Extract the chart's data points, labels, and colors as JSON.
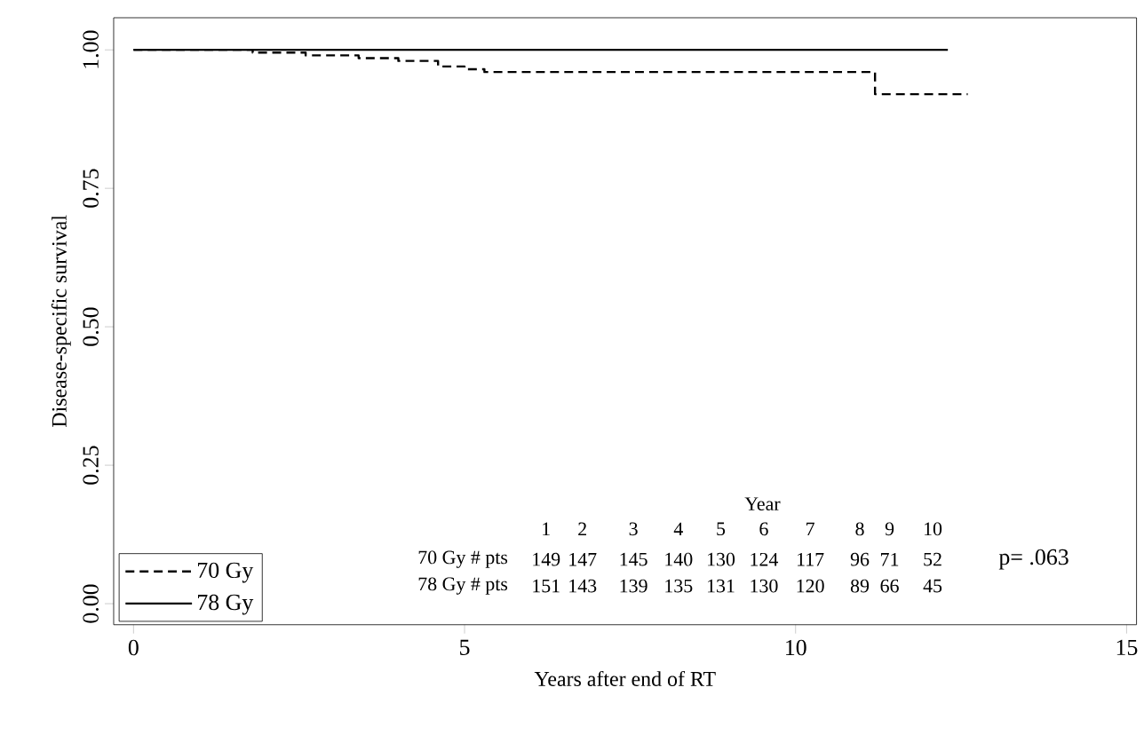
{
  "chart_data": {
    "type": "step",
    "xlabel": "Years after end of RT",
    "ylabel": "Disease-specific survival",
    "series": [
      {
        "name": "70 Gy",
        "color": "#000000",
        "line_style": "dashed",
        "x": [
          0,
          1.8,
          2.6,
          3.4,
          4.0,
          4.6,
          5.0,
          5.3,
          11.2,
          12.6
        ],
        "values": [
          1,
          0.995,
          0.99,
          0.985,
          0.98,
          0.97,
          0.965,
          0.96,
          0.92,
          0.92
        ]
      },
      {
        "name": "78 Gy",
        "color": "#000000",
        "line_style": "solid",
        "x": [
          0,
          12.3
        ],
        "values": [
          1,
          1
        ]
      }
    ],
    "xlim": [
      -0.3,
      15.15
    ],
    "ylim": [
      -0.038,
      1.058
    ],
    "xticks": [
      0,
      5,
      10,
      15
    ],
    "yticks": [
      {
        "value": 0,
        "label": "0.00"
      },
      {
        "value": 0.25,
        "label": "0.25"
      },
      {
        "value": 0.5,
        "label": "0.50"
      },
      {
        "value": 0.75,
        "label": "0.75"
      },
      {
        "value": 1,
        "label": "1.00"
      }
    ],
    "grid": false,
    "legend": "bottom left",
    "marker": "none",
    "annotations": [
      "Year",
      "1",
      "2",
      "3",
      "4",
      "5",
      "6",
      "7",
      "8",
      "9",
      "10",
      "70 Gy # pts",
      "149",
      "147",
      "145",
      "140",
      "130",
      "124",
      "117",
      "96",
      "71",
      "52",
      "78 Gy # pts",
      "151",
      "143",
      "139",
      "135",
      "131",
      "130",
      "120",
      "89",
      "66",
      "45",
      "p= .063"
    ]
  }
}
